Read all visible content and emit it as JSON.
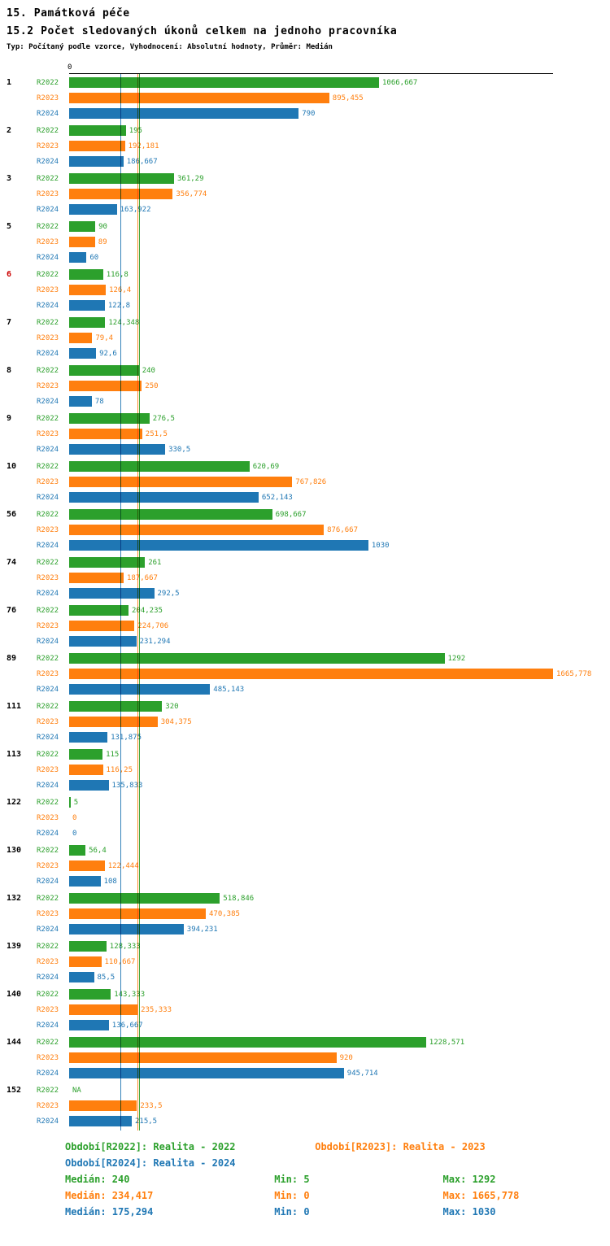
{
  "header": {
    "title": "15. Památková péče",
    "subtitle": "15.2 Počet sledovaných úkonů celkem na jednoho pracovníka",
    "meta": "Typ: Počítaný podle vzorce, Vyhodnocení: Absolutní hodnoty, Průměr: Medián"
  },
  "chart_data": {
    "type": "bar",
    "orientation": "horizontal",
    "title": "15.2 Počet sledovaných úkonů celkem na jednoho pracovníka",
    "axis_zero_label": "0",
    "xlim": [
      0,
      1665.778
    ],
    "grid": false,
    "legend_position": "bottom",
    "series": [
      {
        "name": "R2022",
        "color": "#2ca02c"
      },
      {
        "name": "R2023",
        "color": "#ff7f0e"
      },
      {
        "name": "R2024",
        "color": "#1f77b4"
      }
    ],
    "default_group_label_color": "#000000",
    "groups": [
      {
        "id": "1",
        "rows": [
          {
            "v": 1066.667,
            "t": "1066,667"
          },
          {
            "v": 895.455,
            "t": "895,455"
          },
          {
            "v": 790,
            "t": "790"
          }
        ]
      },
      {
        "id": "2",
        "rows": [
          {
            "v": 195,
            "t": "195"
          },
          {
            "v": 192.181,
            "t": "192,181"
          },
          {
            "v": 186.667,
            "t": "186,667"
          }
        ]
      },
      {
        "id": "3",
        "rows": [
          {
            "v": 361.29,
            "t": "361,29"
          },
          {
            "v": 356.774,
            "t": "356,774"
          },
          {
            "v": 163.922,
            "t": "163,922"
          }
        ]
      },
      {
        "id": "5",
        "rows": [
          {
            "v": 90,
            "t": "90"
          },
          {
            "v": 89,
            "t": "89"
          },
          {
            "v": 60,
            "t": "60"
          }
        ]
      },
      {
        "id": "6",
        "label_color": "#cc0000",
        "rows": [
          {
            "v": 116.8,
            "t": "116,8"
          },
          {
            "v": 126.4,
            "t": "126,4"
          },
          {
            "v": 122.8,
            "t": "122,8"
          }
        ]
      },
      {
        "id": "7",
        "rows": [
          {
            "v": 124.348,
            "t": "124,348"
          },
          {
            "v": 79.4,
            "t": "79,4"
          },
          {
            "v": 92.6,
            "t": "92,6"
          }
        ]
      },
      {
        "id": "8",
        "rows": [
          {
            "v": 240,
            "t": "240"
          },
          {
            "v": 250,
            "t": "250"
          },
          {
            "v": 78,
            "t": "78"
          }
        ]
      },
      {
        "id": "9",
        "rows": [
          {
            "v": 276.5,
            "t": "276,5"
          },
          {
            "v": 251.5,
            "t": "251,5"
          },
          {
            "v": 330.5,
            "t": "330,5"
          }
        ]
      },
      {
        "id": "10",
        "rows": [
          {
            "v": 620.69,
            "t": "620,69"
          },
          {
            "v": 767.826,
            "t": "767,826"
          },
          {
            "v": 652.143,
            "t": "652,143"
          }
        ]
      },
      {
        "id": "56",
        "rows": [
          {
            "v": 698.667,
            "t": "698,667"
          },
          {
            "v": 876.667,
            "t": "876,667"
          },
          {
            "v": 1030,
            "t": "1030"
          }
        ]
      },
      {
        "id": "74",
        "rows": [
          {
            "v": 261,
            "t": "261"
          },
          {
            "v": 187.667,
            "t": "187,667"
          },
          {
            "v": 292.5,
            "t": "292,5"
          }
        ]
      },
      {
        "id": "76",
        "rows": [
          {
            "v": 204.235,
            "t": "204,235"
          },
          {
            "v": 224.706,
            "t": "224,706"
          },
          {
            "v": 231.294,
            "t": "231,294"
          }
        ]
      },
      {
        "id": "89",
        "rows": [
          {
            "v": 1292,
            "t": "1292"
          },
          {
            "v": 1665.778,
            "t": "1665,778"
          },
          {
            "v": 485.143,
            "t": "485,143"
          }
        ]
      },
      {
        "id": "111",
        "rows": [
          {
            "v": 320,
            "t": "320"
          },
          {
            "v": 304.375,
            "t": "304,375"
          },
          {
            "v": 131.875,
            "t": "131,875"
          }
        ]
      },
      {
        "id": "113",
        "rows": [
          {
            "v": 115,
            "t": "115"
          },
          {
            "v": 116.25,
            "t": "116,25"
          },
          {
            "v": 135.833,
            "t": "135,833"
          }
        ]
      },
      {
        "id": "122",
        "rows": [
          {
            "v": 5,
            "t": "5"
          },
          {
            "v": 0,
            "t": "0"
          },
          {
            "v": 0,
            "t": "0"
          }
        ]
      },
      {
        "id": "130",
        "rows": [
          {
            "v": 56.4,
            "t": "56,4"
          },
          {
            "v": 122.444,
            "t": "122,444"
          },
          {
            "v": 108,
            "t": "108"
          }
        ]
      },
      {
        "id": "132",
        "rows": [
          {
            "v": 518.846,
            "t": "518,846"
          },
          {
            "v": 470.385,
            "t": "470,385"
          },
          {
            "v": 394.231,
            "t": "394,231"
          }
        ]
      },
      {
        "id": "139",
        "rows": [
          {
            "v": 128.333,
            "t": "128,333"
          },
          {
            "v": 110.667,
            "t": "110,667"
          },
          {
            "v": 85.5,
            "t": "85,5"
          }
        ]
      },
      {
        "id": "140",
        "rows": [
          {
            "v": 143.333,
            "t": "143,333"
          },
          {
            "v": 235.333,
            "t": "235,333"
          },
          {
            "v": 136.667,
            "t": "136,667"
          }
        ]
      },
      {
        "id": "144",
        "rows": [
          {
            "v": 1228.571,
            "t": "1228,571"
          },
          {
            "v": 920,
            "t": "920"
          },
          {
            "v": 945.714,
            "t": "945,714"
          }
        ]
      },
      {
        "id": "152",
        "rows": [
          {
            "v": null,
            "t": "NA"
          },
          {
            "v": 233.5,
            "t": "233,5"
          },
          {
            "v": 215.5,
            "t": "215,5"
          }
        ]
      }
    ]
  },
  "legend": {
    "items": [
      {
        "label": "Období[R2022]: Realita - 2022"
      },
      {
        "label": "Období[R2023]: Realita - 2023"
      },
      {
        "label": "Období[R2024]: Realita - 2024"
      }
    ]
  },
  "stats": [
    {
      "series": "R2022",
      "median_label": "Medián: 240",
      "min_label": "Min: 5",
      "max_label": "Max: 1292",
      "median_value": 240
    },
    {
      "series": "R2023",
      "median_label": "Medián: 234,417",
      "min_label": "Min: 0",
      "max_label": "Max: 1665,778",
      "median_value": 234.417
    },
    {
      "series": "R2024",
      "median_label": "Medián: 175,294",
      "min_label": "Min: 0",
      "max_label": "Max: 1030",
      "median_value": 175.294
    }
  ]
}
